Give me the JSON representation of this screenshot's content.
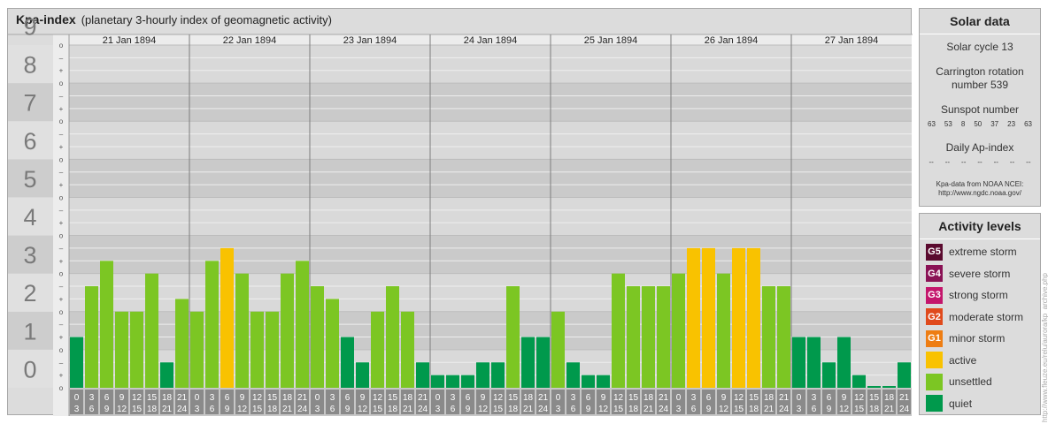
{
  "header": {
    "title": "Kpa-index",
    "subtitle": "(planetary 3-hourly index of geomagnetic activity)"
  },
  "chart_data": {
    "type": "bar",
    "title": "Kpa-index",
    "subtitle": "(planetary 3-hourly index of geomagnetic activity)",
    "ylim": [
      0,
      9
    ],
    "y_ticks": [
      "0",
      "1",
      "2",
      "3",
      "4",
      "5",
      "6",
      "7",
      "8",
      "9"
    ],
    "minor_tick_labels": [
      "o",
      "+",
      "–"
    ],
    "grid": true,
    "days": [
      "21 Jan 1894",
      "22 Jan 1894",
      "23 Jan 1894",
      "24 Jan 1894",
      "25 Jan 1894",
      "26 Jan 1894",
      "27 Jan 1894"
    ],
    "interval_start_labels": [
      "0",
      "3",
      "6",
      "9",
      "12",
      "15",
      "18",
      "21"
    ],
    "interval_end_labels": [
      "3",
      "6",
      "9",
      "12",
      "15",
      "18",
      "21",
      "24"
    ],
    "values": [
      [
        1.333,
        2.667,
        3.333,
        2.0,
        2.0,
        3.0,
        0.667,
        2.333
      ],
      [
        2.0,
        3.333,
        3.667,
        3.0,
        2.0,
        2.0,
        3.0,
        3.333
      ],
      [
        2.667,
        2.333,
        1.333,
        0.667,
        2.0,
        2.667,
        2.0,
        0.667
      ],
      [
        0.333,
        0.333,
        0.333,
        0.667,
        0.667,
        2.667,
        1.333,
        1.333
      ],
      [
        2.0,
        0.667,
        0.333,
        0.333,
        3.0,
        2.667,
        2.667,
        2.667
      ],
      [
        3.0,
        3.667,
        3.667,
        3.0,
        3.667,
        3.667,
        2.667,
        2.667
      ],
      [
        1.333,
        1.333,
        0.667,
        1.333,
        0.333,
        0.0,
        0.0,
        0.667
      ]
    ],
    "levels": [
      [
        2,
        1,
        1,
        1,
        1,
        1,
        2,
        1
      ],
      [
        1,
        1,
        3,
        1,
        1,
        1,
        1,
        1
      ],
      [
        1,
        1,
        2,
        2,
        1,
        1,
        1,
        2
      ],
      [
        2,
        2,
        2,
        2,
        2,
        1,
        2,
        2
      ],
      [
        1,
        2,
        2,
        2,
        1,
        1,
        1,
        1
      ],
      [
        1,
        3,
        3,
        1,
        3,
        3,
        1,
        1
      ],
      [
        2,
        2,
        2,
        2,
        2,
        2,
        2,
        2
      ]
    ],
    "colors": {
      "quiet": "#00994c",
      "unsettled": "#7cc623",
      "active": "#f9c200"
    }
  },
  "solar": {
    "heading": "Solar data",
    "cycle": "Solar cycle 13",
    "carrington_line1": "Carrington rotation",
    "carrington_line2": "number 539",
    "sunspot_heading": "Sunspot number",
    "sunspot_values": [
      "63",
      "53",
      "8",
      "50",
      "37",
      "23",
      "63"
    ],
    "ap_heading": "Daily Ap-index",
    "ap_values": [
      "--",
      "--",
      "--",
      "--",
      "--",
      "--",
      "--"
    ],
    "source_line1": "Kpa-data from NOAA NCEI:",
    "source_line2": "http://www.ngdc.noaa.gov/"
  },
  "activity": {
    "heading": "Activity levels",
    "items": [
      {
        "code": "G5",
        "label": "extreme storm",
        "color": "#5a0a2e"
      },
      {
        "code": "G4",
        "label": "severe storm",
        "color": "#8a1255"
      },
      {
        "code": "G3",
        "label": "strong storm",
        "color": "#c4166c"
      },
      {
        "code": "G2",
        "label": "moderate storm",
        "color": "#e04a1c"
      },
      {
        "code": "G1",
        "label": "minor storm",
        "color": "#ee7d12"
      },
      {
        "code": "",
        "label": "active",
        "color": "#f9c200"
      },
      {
        "code": "",
        "label": "unsettled",
        "color": "#7cc623"
      },
      {
        "code": "",
        "label": "quiet",
        "color": "#00994c"
      }
    ]
  },
  "credit": "http://www.fleuze.eu/relu/aurora/kp_archive.php"
}
